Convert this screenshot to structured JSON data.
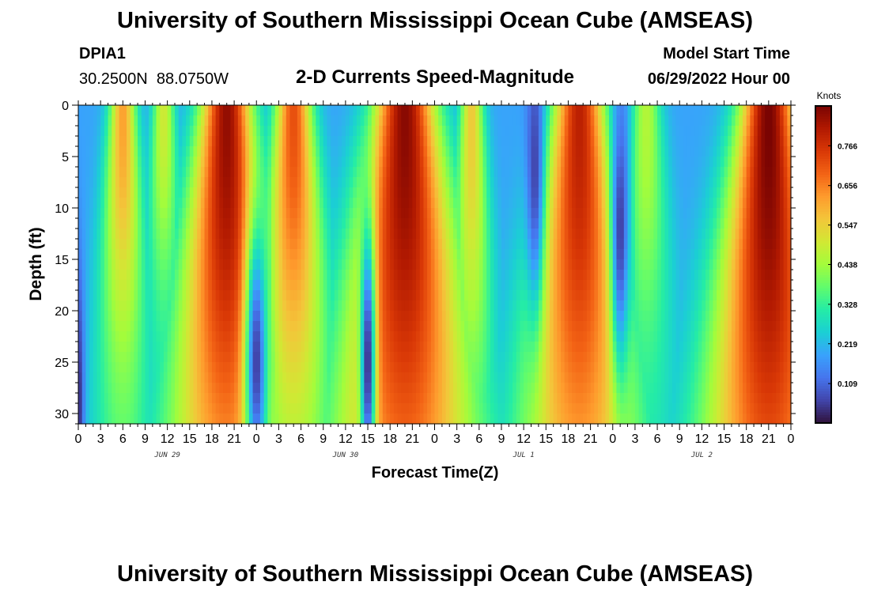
{
  "header": {
    "title": "University of Southern Mississippi Ocean Cube (AMSEAS)",
    "station_id": "DPIA1",
    "station_coords": "30.2500N  88.0750W",
    "subtitle": "2-D Currents Speed-Magnitude",
    "model_start_label": "Model Start Time",
    "model_start_value": "06/29/2022 Hour 00"
  },
  "footer": {
    "title": "University of Southern Mississippi Ocean Cube (AMSEAS)"
  },
  "colorbar": {
    "unit_label": "Knots",
    "ticks": [
      "0.766",
      "0.656",
      "0.547",
      "0.438",
      "0.328",
      "0.219",
      "0.109"
    ],
    "tick_values": [
      0.766,
      0.656,
      0.547,
      0.438,
      0.328,
      0.219,
      0.109
    ],
    "vmin": 0.0,
    "vmax": 0.876,
    "colormap": [
      "#30123b",
      "#4145ab",
      "#4675ed",
      "#39a2fc",
      "#1bcfd4",
      "#24eca6",
      "#61fc6c",
      "#a4fc3b",
      "#d1e834",
      "#f3c63a",
      "#fe9b2d",
      "#f36315",
      "#d93806",
      "#b11901",
      "#7a0402"
    ]
  },
  "chart_data": {
    "type": "heatmap",
    "title": "2-D Currents Speed-Magnitude",
    "xlabel": "Forecast Time(Z)",
    "ylabel": "Depth (ft)",
    "x_range_hours": [
      0,
      96
    ],
    "y_range_ft": [
      0,
      31
    ],
    "y_ticks": [
      "0",
      "5",
      "10",
      "15",
      "20",
      "25",
      "30"
    ],
    "y_tick_values": [
      0,
      5,
      10,
      15,
      20,
      25,
      30
    ],
    "x_tick_labels": [
      "0",
      "3",
      "6",
      "9",
      "12",
      "15",
      "18",
      "21",
      "0",
      "3",
      "6",
      "9",
      "12",
      "15",
      "18",
      "21",
      "0",
      "3",
      "6",
      "9",
      "12",
      "15",
      "18",
      "21",
      "0",
      "3",
      "6",
      "9",
      "12",
      "15",
      "18",
      "21",
      "0"
    ],
    "date_labels": [
      "JUN 29",
      "JUN 30",
      "JUL 1",
      "JUL 2"
    ],
    "date_label_hours": [
      12,
      36,
      60,
      84
    ],
    "units": "Knots",
    "ridges": [
      {
        "center_hour": 6.0,
        "width_h": 1.8,
        "surface_speed": 0.62,
        "decay_ft": 22
      },
      {
        "center_hour": 11.5,
        "width_h": 1.5,
        "surface_speed": 0.5,
        "decay_ft": 16
      },
      {
        "center_hour": 20.0,
        "width_h": 3.5,
        "surface_speed": 0.85,
        "decay_ft": 40
      },
      {
        "center_hour": 29.0,
        "width_h": 2.5,
        "surface_speed": 0.72,
        "decay_ft": 28
      },
      {
        "center_hour": 44.0,
        "width_h": 4.2,
        "surface_speed": 0.86,
        "decay_ft": 45
      },
      {
        "center_hour": 53.0,
        "width_h": 1.6,
        "surface_speed": 0.56,
        "decay_ft": 24
      },
      {
        "center_hour": 67.5,
        "width_h": 3.5,
        "surface_speed": 0.8,
        "decay_ft": 42
      },
      {
        "center_hour": 76.5,
        "width_h": 2.0,
        "surface_speed": 0.46,
        "decay_ft": 22
      },
      {
        "center_hour": 93.0,
        "width_h": 3.8,
        "surface_speed": 0.88,
        "decay_ft": 48
      }
    ],
    "lows": [
      {
        "center_hour": 24.0,
        "width_h": 1.5,
        "depth_ft": 25,
        "min_speed": 0.05
      },
      {
        "center_hour": 39.0,
        "width_h": 1.0,
        "depth_ft": 25,
        "min_speed": 0.02
      },
      {
        "center_hour": 61.5,
        "width_h": 1.2,
        "depth_ft": 6,
        "min_speed": 0.06
      },
      {
        "center_hour": 73.0,
        "width_h": 1.2,
        "depth_ft": 12,
        "min_speed": 0.05
      },
      {
        "center_hour": 0.0,
        "width_h": 0.8,
        "depth_ft": 29,
        "min_speed": 0.03
      }
    ],
    "background_speed": 0.19
  }
}
